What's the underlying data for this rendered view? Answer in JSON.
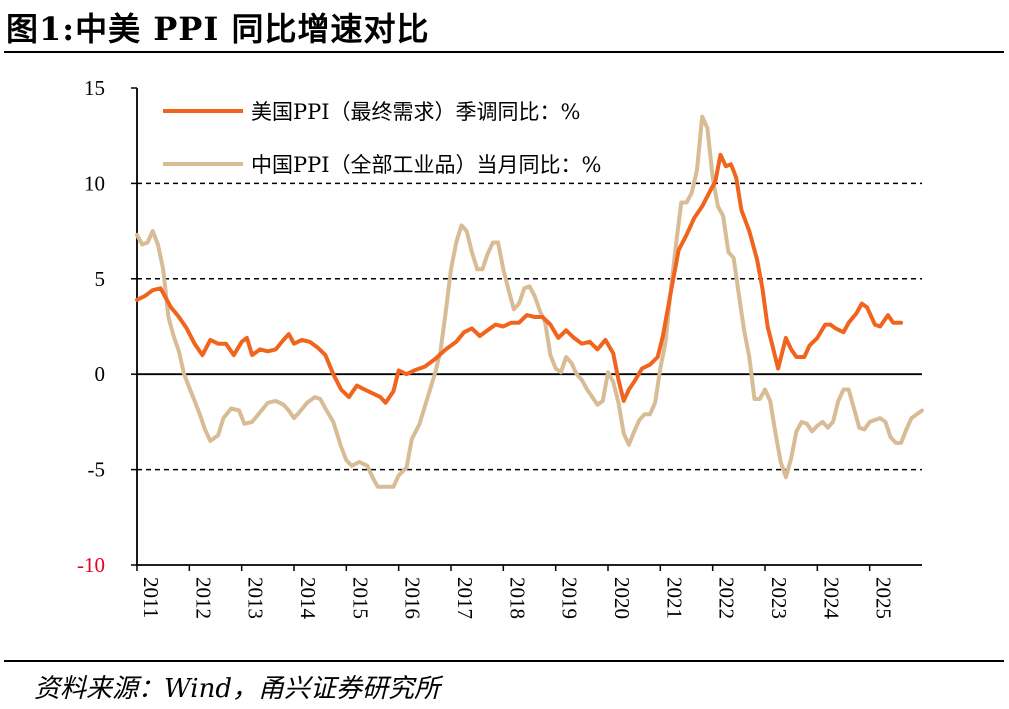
{
  "figure_title": "图1:中美 PPI 同比增速对比",
  "source_note": "资料来源：Wind，甬兴证券研究所",
  "chart_data": {
    "type": "line",
    "title": "图1:中美 PPI 同比增速对比",
    "xlabel": "",
    "ylabel": "",
    "ylim": [
      -10,
      15
    ],
    "yticks": [
      {
        "value": 15,
        "label": "15",
        "color": "#000000"
      },
      {
        "value": 10,
        "label": "10",
        "color": "#000000"
      },
      {
        "value": 5,
        "label": "5",
        "color": "#000000"
      },
      {
        "value": 0,
        "label": "0",
        "color": "#000000"
      },
      {
        "value": -5,
        "label": "-5",
        "color": "#000000"
      },
      {
        "value": -10,
        "label": "-10",
        "color": "#e8001c"
      }
    ],
    "dashed_gridlines_at": [
      10,
      5,
      -5
    ],
    "xlim": [
      2011.0,
      2026.0
    ],
    "xticks": [
      "2011",
      "2012",
      "2013",
      "2014",
      "2015",
      "2016",
      "2017",
      "2018",
      "2019",
      "2020",
      "2021",
      "2022",
      "2023",
      "2024",
      "2025"
    ],
    "legend_position": "top-left",
    "series": [
      {
        "name": "美国PPI（最终需求）季调同比：%",
        "color": "#f0641e",
        "points": [
          [
            2011.0,
            3.9
          ],
          [
            2011.15,
            4.1
          ],
          [
            2011.3,
            4.4
          ],
          [
            2011.45,
            4.5
          ],
          [
            2011.55,
            4.0
          ],
          [
            2011.65,
            3.5
          ],
          [
            2011.8,
            3.0
          ],
          [
            2011.95,
            2.4
          ],
          [
            2012.1,
            1.6
          ],
          [
            2012.25,
            1.0
          ],
          [
            2012.4,
            1.8
          ],
          [
            2012.55,
            1.6
          ],
          [
            2012.7,
            1.6
          ],
          [
            2012.85,
            1.0
          ],
          [
            2013.0,
            1.7
          ],
          [
            2013.1,
            1.9
          ],
          [
            2013.2,
            1.0
          ],
          [
            2013.35,
            1.3
          ],
          [
            2013.5,
            1.2
          ],
          [
            2013.65,
            1.3
          ],
          [
            2013.8,
            1.8
          ],
          [
            2013.9,
            2.1
          ],
          [
            2014.0,
            1.6
          ],
          [
            2014.15,
            1.8
          ],
          [
            2014.3,
            1.7
          ],
          [
            2014.45,
            1.4
          ],
          [
            2014.6,
            1.0
          ],
          [
            2014.75,
            0.0
          ],
          [
            2014.9,
            -0.8
          ],
          [
            2015.05,
            -1.2
          ],
          [
            2015.2,
            -0.6
          ],
          [
            2015.35,
            -0.8
          ],
          [
            2015.5,
            -1.0
          ],
          [
            2015.65,
            -1.2
          ],
          [
            2015.75,
            -1.5
          ],
          [
            2015.9,
            -0.9
          ],
          [
            2016.0,
            0.2
          ],
          [
            2016.15,
            0.0
          ],
          [
            2016.3,
            0.2
          ],
          [
            2016.5,
            0.4
          ],
          [
            2016.7,
            0.8
          ],
          [
            2016.9,
            1.3
          ],
          [
            2017.1,
            1.7
          ],
          [
            2017.25,
            2.2
          ],
          [
            2017.4,
            2.4
          ],
          [
            2017.55,
            2.0
          ],
          [
            2017.7,
            2.3
          ],
          [
            2017.85,
            2.6
          ],
          [
            2018.0,
            2.5
          ],
          [
            2018.15,
            2.7
          ],
          [
            2018.3,
            2.7
          ],
          [
            2018.45,
            3.1
          ],
          [
            2018.6,
            3.0
          ],
          [
            2018.75,
            3.0
          ],
          [
            2018.9,
            2.6
          ],
          [
            2019.05,
            1.9
          ],
          [
            2019.2,
            2.3
          ],
          [
            2019.35,
            1.9
          ],
          [
            2019.5,
            1.6
          ],
          [
            2019.65,
            1.7
          ],
          [
            2019.8,
            1.3
          ],
          [
            2019.95,
            1.8
          ],
          [
            2020.1,
            1.1
          ],
          [
            2020.2,
            -0.3
          ],
          [
            2020.3,
            -1.4
          ],
          [
            2020.4,
            -0.8
          ],
          [
            2020.5,
            -0.4
          ],
          [
            2020.65,
            0.3
          ],
          [
            2020.8,
            0.5
          ],
          [
            2020.95,
            0.9
          ],
          [
            2021.05,
            2.0
          ],
          [
            2021.2,
            4.3
          ],
          [
            2021.35,
            6.5
          ],
          [
            2021.5,
            7.3
          ],
          [
            2021.65,
            8.2
          ],
          [
            2021.8,
            8.8
          ],
          [
            2021.95,
            9.6
          ],
          [
            2022.05,
            10.1
          ],
          [
            2022.15,
            11.5
          ],
          [
            2022.25,
            10.9
          ],
          [
            2022.35,
            11.0
          ],
          [
            2022.45,
            10.3
          ],
          [
            2022.55,
            8.6
          ],
          [
            2022.7,
            7.5
          ],
          [
            2022.85,
            6.0
          ],
          [
            2022.95,
            4.5
          ],
          [
            2023.05,
            2.5
          ],
          [
            2023.15,
            1.4
          ],
          [
            2023.25,
            0.3
          ],
          [
            2023.4,
            1.9
          ],
          [
            2023.5,
            1.3
          ],
          [
            2023.6,
            0.9
          ],
          [
            2023.75,
            0.9
          ],
          [
            2023.85,
            1.5
          ],
          [
            2024.0,
            1.9
          ],
          [
            2024.15,
            2.6
          ],
          [
            2024.25,
            2.6
          ],
          [
            2024.35,
            2.4
          ],
          [
            2024.5,
            2.2
          ],
          [
            2024.6,
            2.7
          ],
          [
            2024.75,
            3.2
          ],
          [
            2024.85,
            3.7
          ],
          [
            2024.95,
            3.5
          ],
          [
            2025.1,
            2.6
          ],
          [
            2025.2,
            2.5
          ],
          [
            2025.35,
            3.1
          ],
          [
            2025.45,
            2.7
          ],
          [
            2025.6,
            2.7
          ]
        ]
      },
      {
        "name": "中国PPI（全部工业品）当月同比：%",
        "color": "#d7bc96",
        "points": [
          [
            2011.0,
            7.3
          ],
          [
            2011.1,
            6.8
          ],
          [
            2011.2,
            6.9
          ],
          [
            2011.3,
            7.5
          ],
          [
            2011.4,
            6.8
          ],
          [
            2011.5,
            5.5
          ],
          [
            2011.6,
            3.0
          ],
          [
            2011.7,
            2.0
          ],
          [
            2011.8,
            1.2
          ],
          [
            2011.9,
            0.0
          ],
          [
            2012.0,
            -0.7
          ],
          [
            2012.1,
            -1.4
          ],
          [
            2012.2,
            -2.1
          ],
          [
            2012.3,
            -2.9
          ],
          [
            2012.4,
            -3.5
          ],
          [
            2012.55,
            -3.2
          ],
          [
            2012.65,
            -2.3
          ],
          [
            2012.8,
            -1.8
          ],
          [
            2012.95,
            -1.9
          ],
          [
            2013.05,
            -2.6
          ],
          [
            2013.2,
            -2.5
          ],
          [
            2013.35,
            -2.0
          ],
          [
            2013.5,
            -1.5
          ],
          [
            2013.65,
            -1.4
          ],
          [
            2013.8,
            -1.6
          ],
          [
            2013.9,
            -1.9
          ],
          [
            2014.0,
            -2.3
          ],
          [
            2014.1,
            -2.0
          ],
          [
            2014.25,
            -1.5
          ],
          [
            2014.4,
            -1.2
          ],
          [
            2014.5,
            -1.3
          ],
          [
            2014.6,
            -1.8
          ],
          [
            2014.75,
            -2.5
          ],
          [
            2014.9,
            -3.8
          ],
          [
            2015.0,
            -4.5
          ],
          [
            2015.1,
            -4.8
          ],
          [
            2015.25,
            -4.6
          ],
          [
            2015.4,
            -4.8
          ],
          [
            2015.5,
            -5.4
          ],
          [
            2015.6,
            -5.9
          ],
          [
            2015.75,
            -5.9
          ],
          [
            2015.9,
            -5.9
          ],
          [
            2016.0,
            -5.3
          ],
          [
            2016.15,
            -4.9
          ],
          [
            2016.25,
            -3.4
          ],
          [
            2016.4,
            -2.6
          ],
          [
            2016.5,
            -1.7
          ],
          [
            2016.6,
            -0.8
          ],
          [
            2016.7,
            0.1
          ],
          [
            2016.8,
            1.2
          ],
          [
            2016.9,
            3.3
          ],
          [
            2017.0,
            5.5
          ],
          [
            2017.1,
            6.9
          ],
          [
            2017.2,
            7.8
          ],
          [
            2017.3,
            7.5
          ],
          [
            2017.4,
            6.4
          ],
          [
            2017.5,
            5.5
          ],
          [
            2017.6,
            5.5
          ],
          [
            2017.7,
            6.3
          ],
          [
            2017.8,
            6.9
          ],
          [
            2017.9,
            6.9
          ],
          [
            2018.0,
            5.5
          ],
          [
            2018.1,
            4.4
          ],
          [
            2018.2,
            3.4
          ],
          [
            2018.3,
            3.7
          ],
          [
            2018.4,
            4.5
          ],
          [
            2018.5,
            4.6
          ],
          [
            2018.6,
            4.1
          ],
          [
            2018.7,
            3.3
          ],
          [
            2018.8,
            2.7
          ],
          [
            2018.9,
            1.0
          ],
          [
            2019.0,
            0.3
          ],
          [
            2019.1,
            0.1
          ],
          [
            2019.2,
            0.9
          ],
          [
            2019.3,
            0.6
          ],
          [
            2019.4,
            0.0
          ],
          [
            2019.5,
            -0.3
          ],
          [
            2019.6,
            -0.8
          ],
          [
            2019.7,
            -1.2
          ],
          [
            2019.8,
            -1.6
          ],
          [
            2019.9,
            -1.4
          ],
          [
            2020.0,
            0.1
          ],
          [
            2020.1,
            -0.4
          ],
          [
            2020.2,
            -1.5
          ],
          [
            2020.3,
            -3.1
          ],
          [
            2020.4,
            -3.7
          ],
          [
            2020.5,
            -3.0
          ],
          [
            2020.6,
            -2.4
          ],
          [
            2020.7,
            -2.1
          ],
          [
            2020.8,
            -2.1
          ],
          [
            2020.9,
            -1.5
          ],
          [
            2021.0,
            0.3
          ],
          [
            2021.1,
            1.7
          ],
          [
            2021.2,
            4.4
          ],
          [
            2021.3,
            6.8
          ],
          [
            2021.4,
            9.0
          ],
          [
            2021.5,
            9.0
          ],
          [
            2021.6,
            9.5
          ],
          [
            2021.7,
            10.7
          ],
          [
            2021.8,
            13.5
          ],
          [
            2021.9,
            12.9
          ],
          [
            2022.0,
            10.3
          ],
          [
            2022.1,
            8.8
          ],
          [
            2022.2,
            8.3
          ],
          [
            2022.3,
            6.4
          ],
          [
            2022.4,
            6.1
          ],
          [
            2022.5,
            4.2
          ],
          [
            2022.6,
            2.3
          ],
          [
            2022.7,
            0.9
          ],
          [
            2022.8,
            -1.3
          ],
          [
            2022.9,
            -1.3
          ],
          [
            2023.0,
            -0.8
          ],
          [
            2023.1,
            -1.4
          ],
          [
            2023.2,
            -3.1
          ],
          [
            2023.3,
            -4.6
          ],
          [
            2023.4,
            -5.4
          ],
          [
            2023.5,
            -4.4
          ],
          [
            2023.6,
            -3.0
          ],
          [
            2023.7,
            -2.5
          ],
          [
            2023.8,
            -2.6
          ],
          [
            2023.9,
            -3.0
          ],
          [
            2024.0,
            -2.7
          ],
          [
            2024.1,
            -2.5
          ],
          [
            2024.2,
            -2.8
          ],
          [
            2024.3,
            -2.5
          ],
          [
            2024.4,
            -1.4
          ],
          [
            2024.5,
            -0.8
          ],
          [
            2024.6,
            -0.8
          ],
          [
            2024.7,
            -1.8
          ],
          [
            2024.8,
            -2.8
          ],
          [
            2024.9,
            -2.9
          ],
          [
            2025.0,
            -2.5
          ],
          [
            2025.1,
            -2.4
          ],
          [
            2025.2,
            -2.3
          ],
          [
            2025.3,
            -2.5
          ],
          [
            2025.4,
            -3.3
          ],
          [
            2025.5,
            -3.6
          ],
          [
            2025.6,
            -3.6
          ],
          [
            2025.7,
            -2.9
          ],
          [
            2025.8,
            -2.3
          ],
          [
            2025.9,
            -2.1
          ],
          [
            2026.0,
            -1.9
          ]
        ]
      }
    ]
  }
}
